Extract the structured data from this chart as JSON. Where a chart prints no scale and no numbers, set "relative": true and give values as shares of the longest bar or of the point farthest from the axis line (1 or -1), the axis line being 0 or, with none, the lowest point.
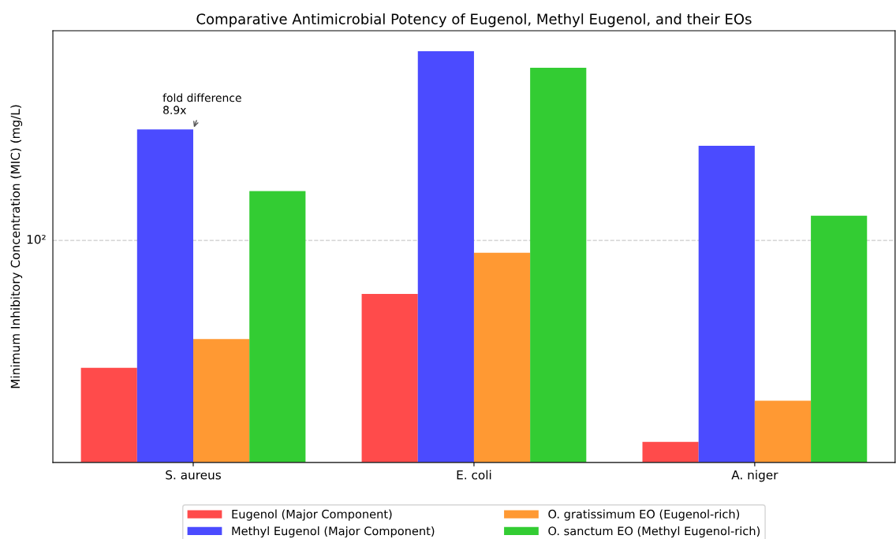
{
  "chart_data": {
    "type": "bar",
    "title": "Comparative Antimicrobial Potency of Eugenol, Methyl Eugenol, and their EOs",
    "ylabel": "Minimum Inhibitory Concentration (MIC) (mg/L)",
    "categories": [
      "S. aureus",
      "E. coli",
      "A. niger"
    ],
    "series": [
      {
        "name": "Eugenol (Major Component)",
        "color": "#ff4b4b",
        "values": [
          0.23,
          0.41,
          0.05
        ]
      },
      {
        "name": "Methyl Eugenol (Major Component)",
        "color": "#4b4bff",
        "values": [
          0.81,
          1,
          0.77
        ]
      },
      {
        "name": "O. gratissimum EO (Eugenol-rich)",
        "color": "#ff9933",
        "values": [
          0.3,
          0.51,
          0.15
        ]
      },
      {
        "name": "O. sanctum EO (Methyl Eugenol-rich)",
        "color": "#33cc33",
        "values": [
          0.66,
          0.96,
          0.6
        ]
      }
    ],
    "relative": true,
    "ref_lines": [
      {
        "axis": "y",
        "value": 0.54,
        "color": "#cccccc",
        "line_style": "dashed"
      }
    ],
    "legend": "bottom",
    "annotations": [
      {
        "text": "fold difference\n8.9x",
        "x": "S. aureus",
        "y": 0.81
      },
      "10²"
    ]
  }
}
